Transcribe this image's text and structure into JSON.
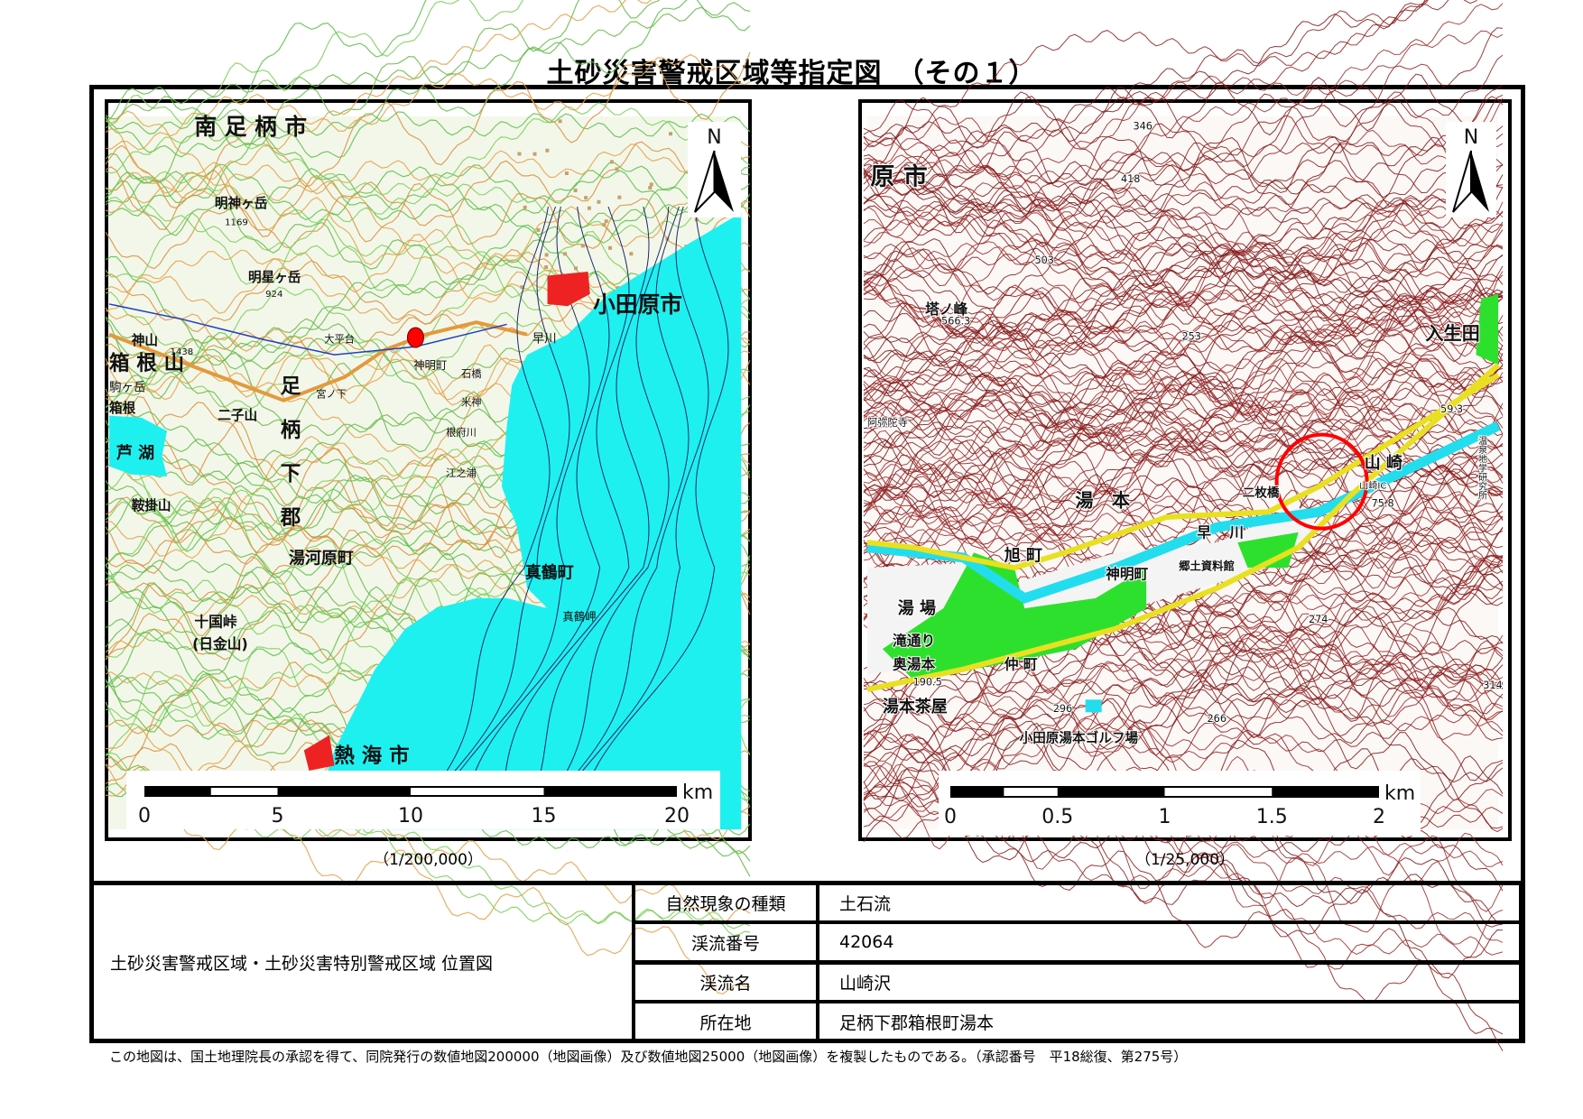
{
  "title": "土砂災害警戒区域等指定図　（その１）",
  "left_map": {
    "scale_caption": "（1/200,000）",
    "scale_bar": {
      "ticks": [
        "0",
        "5",
        "10",
        "15",
        "20"
      ],
      "unit": "km"
    },
    "north_label": "N",
    "marker_color": "#ff0000",
    "sea_color": "#1ef0f0",
    "labels": [
      "南 足 柄 市",
      "小田原市",
      "箱 根 山",
      "足柄下郡",
      "湯河原町",
      "真鶴町",
      "熱 海 市",
      "明神ヶ岳",
      "十国峠",
      "(日金山)",
      "早川",
      "神明町",
      "真鶴岬",
      "芦 湖",
      "鞍掛山",
      "二子山",
      "駒ヶ岳",
      "神山",
      "1438",
      "箱根",
      "明星ヶ岳",
      "924",
      "1169",
      "石橋",
      "米神",
      "根府川",
      "江之浦",
      "宮ノ下",
      "大平台"
    ]
  },
  "right_map": {
    "scale_caption": "（1/25,000）",
    "scale_bar": {
      "ticks": [
        "0",
        "0.5",
        "1",
        "1.5",
        "2"
      ],
      "unit": "km"
    },
    "north_label": "N",
    "highlight_circle_color": "#ff0000",
    "labels": [
      "原 市",
      "塔ノ峰",
      "503",
      "418",
      "346",
      "566.3",
      "253",
      "入生田",
      "山 崎",
      "湯　本",
      "二枚橋",
      "旭 町",
      "神明町",
      "早",
      "川",
      "湯 場",
      "滝通り",
      "奥湯本",
      "仲 町",
      "湯本茶屋",
      "小田原湯本ゴルフ場",
      "274",
      "266",
      "296",
      "190.5",
      "314",
      "59.3",
      "75.8",
      "郷土資料館",
      "阿弥陀寺",
      "山崎IC",
      "温泉地学研究所"
    ]
  },
  "info": {
    "heading": "土砂災害警戒区域・土砂災害特別警戒区域 位置図",
    "rows": [
      {
        "label": "自然現象の種類",
        "value": "土石流"
      },
      {
        "label": "渓流番号",
        "value": "42064"
      },
      {
        "label": "渓流名",
        "value": "山崎沢"
      },
      {
        "label": "所在地",
        "value": "足柄下郡箱根町湯本"
      }
    ]
  },
  "footer": "この地図は、国土地理院長の承認を得て、同院発行の数値地図200000（地図画像）及び数値地図25000（地図画像）を複製したものである。（承認番号　平18総復、第275号）"
}
